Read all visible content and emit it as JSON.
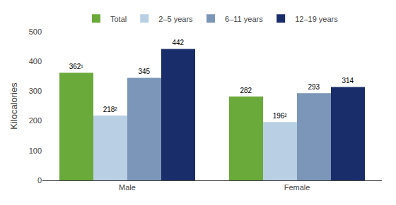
{
  "chart_data": {
    "type": "bar",
    "categories": [
      "Male",
      "Female"
    ],
    "series": [
      {
        "name": "Total",
        "color": "#6aaa3a",
        "values": [
          362,
          282
        ],
        "value_labels": [
          "362¹",
          "282"
        ]
      },
      {
        "name": "2–5 years",
        "color": "#b8cfe4",
        "values": [
          218,
          196
        ],
        "value_labels": [
          "218²",
          "196²"
        ]
      },
      {
        "name": "6–11 years",
        "color": "#7b96b8",
        "values": [
          345,
          293
        ],
        "value_labels": [
          "345",
          "293"
        ]
      },
      {
        "name": "12–19 years",
        "color": "#1a2d6b",
        "values": [
          442,
          314
        ],
        "value_labels": [
          "442",
          "314"
        ]
      }
    ],
    "ylabel": "Kilocalories",
    "ylim": [
      0,
      500
    ],
    "yticks": [
      0,
      100,
      200,
      300,
      400,
      500
    ],
    "grid": false,
    "legend": "top",
    "data_labels": true
  }
}
